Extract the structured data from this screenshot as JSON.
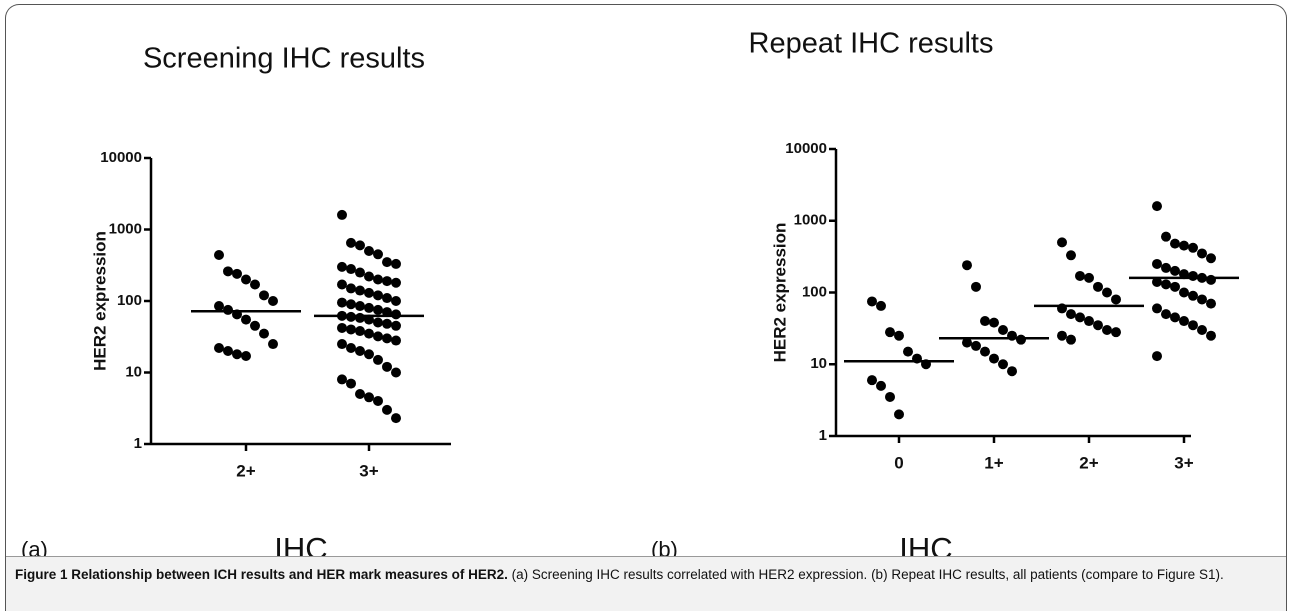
{
  "chart_data": [
    {
      "type": "dotplot",
      "title": "Screening IHC results",
      "panel_label": "(a)",
      "x_label": "IHC",
      "y_label": "HER2 expression",
      "log_scale": true,
      "color": "#000000",
      "categories": [
        "2+",
        "3+"
      ],
      "values": [
        [
          440,
          260,
          240,
          200,
          170,
          120,
          100,
          85,
          75,
          65,
          55,
          45,
          35,
          25,
          22,
          20,
          18,
          17
        ],
        [
          1600,
          650,
          600,
          500,
          450,
          350,
          330,
          300,
          280,
          250,
          220,
          200,
          190,
          180,
          170,
          150,
          140,
          130,
          120,
          110,
          100,
          95,
          90,
          85,
          80,
          75,
          70,
          65,
          62,
          60,
          58,
          55,
          50,
          48,
          45,
          42,
          40,
          38,
          35,
          32,
          30,
          28,
          25,
          22,
          20,
          18,
          15,
          12,
          10,
          8,
          7,
          5,
          4.5,
          4,
          3,
          2.3
        ]
      ],
      "medians": [
        72,
        62
      ],
      "ylim": [
        1,
        10000
      ],
      "yticks": [
        1,
        10,
        100,
        1000,
        10000
      ]
    },
    {
      "type": "dotplot",
      "title": "Repeat IHC results",
      "panel_label": "(b)",
      "x_label": "IHC",
      "y_label": "HER2 expression",
      "log_scale": true,
      "color": "#000000",
      "categories": [
        "0",
        "1+",
        "2+",
        "3+"
      ],
      "values": [
        [
          75,
          65,
          28,
          25,
          15,
          12,
          10,
          6,
          5,
          3.5,
          2
        ],
        [
          240,
          120,
          40,
          38,
          30,
          25,
          22,
          20,
          18,
          15,
          12,
          10,
          8
        ],
        [
          500,
          330,
          170,
          160,
          120,
          100,
          80,
          60,
          50,
          45,
          40,
          35,
          30,
          28,
          25,
          22
        ],
        [
          1600,
          600,
          480,
          450,
          420,
          350,
          300,
          250,
          220,
          200,
          180,
          170,
          160,
          150,
          140,
          130,
          120,
          100,
          90,
          80,
          70,
          60,
          50,
          45,
          40,
          35,
          30,
          25,
          13
        ]
      ],
      "medians": [
        11,
        23,
        65,
        160
      ],
      "ylim": [
        1,
        10000
      ],
      "yticks": [
        1,
        10,
        100,
        1000,
        10000
      ]
    }
  ],
  "caption": {
    "label": "Figure 1",
    "title": "Relationship between ICH results and HER mark measures of HER2.",
    "text": "(a) Screening IHC results correlated with HER2 expression. (b) Repeat IHC results, all patients (compare to Figure S1)."
  }
}
